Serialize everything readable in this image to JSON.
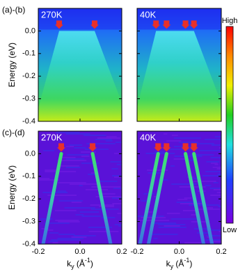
{
  "chart_data": [
    {
      "type": "heatmap",
      "panel_label": "(a)-(b)",
      "title": "270K",
      "ylabel": "Energy (eV)",
      "xlim": [
        -0.2,
        0.2
      ],
      "xticks": [
        -0.2,
        0,
        0.2
      ],
      "ylim": [
        -0.4,
        0.1
      ],
      "yticks": [
        {
          "value": 0,
          "label": "0.0"
        },
        -0.1,
        -0.2,
        -0.3,
        -0.4
      ],
      "arrows": [
        -0.1,
        0.07
      ],
      "arrow_color": "#e8302a"
    },
    {
      "type": "heatmap",
      "title": "40K",
      "xlim": [
        -0.2,
        0.2
      ],
      "xticks": [
        -0.2,
        0,
        0.2
      ],
      "ylim": [
        -0.4,
        0.1
      ],
      "yticks": [
        0,
        -0.1,
        -0.2,
        -0.3,
        -0.4
      ],
      "arrows": [
        -0.11,
        -0.06,
        0.03,
        0.07
      ],
      "arrow_color": "#e8302a"
    },
    {
      "type": "heatmap",
      "panel_label": "(c)-(d)",
      "title": "270K",
      "ylabel": "Energy (eV)",
      "xlabel": {
        "base": "k",
        "sub": "y",
        "unit": " (Å",
        "sup": "-1",
        "close": ")"
      },
      "xlim": [
        -0.2,
        0.2
      ],
      "xticks": [
        -0.2,
        {
          "value": 0,
          "label": "0.0"
        },
        0.2
      ],
      "ylim": [
        -0.4,
        0.1
      ],
      "yticks": [
        {
          "value": 0,
          "label": "0.0"
        },
        -0.1,
        -0.2,
        -0.3,
        -0.4
      ],
      "arrows": [
        -0.09,
        0.06
      ],
      "arrow_color": "#e8302a"
    },
    {
      "type": "heatmap",
      "title": "40K",
      "xlabel": {
        "base": "k",
        "sub": "y",
        "unit": " (Å",
        "sup": "-1",
        "close": ")"
      },
      "xlim": [
        -0.2,
        0.2
      ],
      "xticks": [
        -0.2,
        {
          "value": 0,
          "label": "0.0"
        },
        0.2
      ],
      "ylim": [
        -0.4,
        0.1
      ],
      "yticks": [
        0,
        -0.1,
        -0.2,
        -0.3,
        -0.4
      ],
      "arrows": [
        -0.1,
        -0.06,
        0.03,
        0.07
      ],
      "arrow_color": "#e8302a"
    }
  ],
  "colorbar": {
    "high": "High",
    "low": "Low"
  }
}
